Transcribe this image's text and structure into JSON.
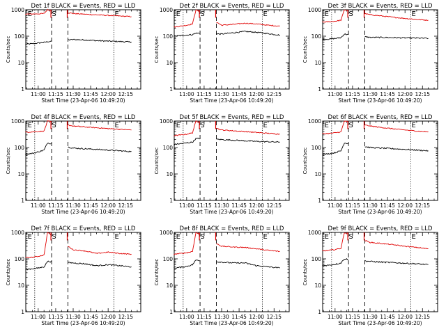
{
  "figure": {
    "ylabel": "Counts/sec",
    "xlabel": "Start Time (23-Apr-06 10:49:20)",
    "colors": {
      "events": "#000000",
      "lld": "#e00000",
      "axes": "#000000",
      "background": "#ffffff"
    }
  },
  "chart_data": [
    {
      "type": "line",
      "title": "Det 1f BLACK = Events, RED = LLD",
      "xlabel": "Start Time (23-Apr-06 10:49:20)",
      "ylabel": "Counts/sec",
      "y_scale": "log",
      "ylim": [
        1,
        1000
      ],
      "y_tick_labels": [
        "1",
        "10",
        "100",
        "1000"
      ],
      "x_tick_labels": [
        "11:00",
        "11:15",
        "11:30",
        "11:45",
        "12:00",
        "12:15"
      ],
      "annotations": [
        "E",
        "S",
        "E"
      ],
      "series": [
        {
          "name": "Events",
          "color": "#000000",
          "x": [
            "10:49",
            "10:55",
            "11:00",
            "11:05",
            "11:08",
            "11:30",
            "11:40",
            "11:50",
            "12:00",
            "12:10",
            "12:20"
          ],
          "values": [
            50,
            52,
            55,
            58,
            62,
            75,
            72,
            68,
            65,
            63,
            60
          ]
        },
        {
          "name": "LLD",
          "color": "#e00000",
          "x": [
            "10:49",
            "10:55",
            "11:00",
            "11:05",
            "11:08",
            "11:30",
            "11:40",
            "11:50",
            "12:00",
            "12:10",
            "12:20"
          ],
          "values": [
            680,
            690,
            700,
            720,
            1000,
            720,
            680,
            640,
            610,
            580,
            550
          ]
        }
      ]
    },
    {
      "type": "line",
      "title": "Det 2f BLACK = Events, RED = LLD",
      "xlabel": "Start Time (23-Apr-06 10:49:20)",
      "ylabel": "Counts/sec",
      "y_scale": "log",
      "ylim": [
        1,
        1000
      ],
      "y_tick_labels": [
        "1",
        "10",
        "100",
        "1000"
      ],
      "x_tick_labels": [
        "11:00",
        "11:15",
        "11:30",
        "11:45",
        "12:00",
        "12:15"
      ],
      "annotations": [
        "E",
        "S",
        "E"
      ],
      "series": [
        {
          "name": "Events",
          "color": "#000000",
          "x": [
            "10:49",
            "10:55",
            "11:00",
            "11:05",
            "11:08",
            "11:30",
            "11:40",
            "11:50",
            "12:00",
            "12:10",
            "12:20"
          ],
          "values": [
            100,
            105,
            110,
            115,
            130,
            120,
            135,
            150,
            140,
            125,
            110
          ]
        },
        {
          "name": "LLD",
          "color": "#e00000",
          "x": [
            "10:49",
            "10:55",
            "11:00",
            "11:05",
            "11:08",
            "11:30",
            "11:40",
            "11:50",
            "12:00",
            "12:10",
            "12:20"
          ],
          "values": [
            220,
            240,
            260,
            290,
            1000,
            260,
            280,
            310,
            290,
            260,
            240
          ]
        }
      ]
    },
    {
      "type": "line",
      "title": "Det 3f BLACK = Events, RED = LLD",
      "xlabel": "Start Time (23-Apr-06 10:49:20)",
      "ylabel": "Counts/sec",
      "y_scale": "log",
      "ylim": [
        1,
        1000
      ],
      "y_tick_labels": [
        "1",
        "10",
        "100",
        "1000"
      ],
      "x_tick_labels": [
        "11:00",
        "11:15",
        "11:30",
        "11:45",
        "12:00",
        "12:15"
      ],
      "annotations": [
        "E",
        "S",
        "E"
      ],
      "series": [
        {
          "name": "Events",
          "color": "#000000",
          "x": [
            "10:49",
            "10:55",
            "11:00",
            "11:05",
            "11:08",
            "11:30",
            "11:40",
            "11:50",
            "12:00",
            "12:10",
            "12:20"
          ],
          "values": [
            75,
            78,
            82,
            88,
            120,
            90,
            90,
            88,
            86,
            85,
            83
          ]
        },
        {
          "name": "LLD",
          "color": "#e00000",
          "x": [
            "10:49",
            "10:55",
            "11:00",
            "11:05",
            "11:08",
            "11:30",
            "11:40",
            "11:50",
            "12:00",
            "12:10",
            "12:20"
          ],
          "values": [
            340,
            350,
            370,
            400,
            1000,
            650,
            580,
            520,
            470,
            430,
            400
          ]
        }
      ]
    },
    {
      "type": "line",
      "title": "Det 4f BLACK = Events, RED = LLD",
      "xlabel": "Start Time (23-Apr-06 10:49:20)",
      "ylabel": "Counts/sec",
      "y_scale": "log",
      "ylim": [
        1,
        1000
      ],
      "y_tick_labels": [
        "1",
        "10",
        "100",
        "1000"
      ],
      "x_tick_labels": [
        "11:00",
        "11:15",
        "11:30",
        "11:45",
        "12:00",
        "12:15"
      ],
      "annotations": [
        "E",
        "S",
        "E"
      ],
      "series": [
        {
          "name": "Events",
          "color": "#000000",
          "x": [
            "10:49",
            "10:55",
            "11:00",
            "11:05",
            "11:08",
            "11:30",
            "11:40",
            "11:50",
            "12:00",
            "12:10",
            "12:20"
          ],
          "values": [
            55,
            60,
            68,
            80,
            150,
            95,
            90,
            85,
            80,
            75,
            70
          ]
        },
        {
          "name": "LLD",
          "color": "#e00000",
          "x": [
            "10:49",
            "10:55",
            "11:00",
            "11:05",
            "11:08",
            "11:30",
            "11:40",
            "11:50",
            "12:00",
            "12:10",
            "12:20"
          ],
          "values": [
            380,
            390,
            400,
            420,
            1000,
            650,
            600,
            560,
            520,
            490,
            460
          ]
        }
      ]
    },
    {
      "type": "line",
      "title": "Det 5f BLACK = Events, RED = LLD",
      "xlabel": "Start Time (23-Apr-06 10:49:20)",
      "ylabel": "Counts/sec",
      "y_scale": "log",
      "ylim": [
        1,
        1000
      ],
      "y_tick_labels": [
        "1",
        "10",
        "100",
        "1000"
      ],
      "x_tick_labels": [
        "11:00",
        "11:15",
        "11:30",
        "11:45",
        "12:00",
        "12:15"
      ],
      "annotations": [
        "E",
        "S",
        "E"
      ],
      "series": [
        {
          "name": "Events",
          "color": "#000000",
          "x": [
            "10:49",
            "10:55",
            "11:00",
            "11:05",
            "11:08",
            "11:30",
            "11:40",
            "11:50",
            "12:00",
            "12:10",
            "12:20"
          ],
          "values": [
            130,
            140,
            150,
            160,
            220,
            200,
            190,
            180,
            170,
            165,
            160
          ]
        },
        {
          "name": "LLD",
          "color": "#e00000",
          "x": [
            "10:49",
            "10:55",
            "11:00",
            "11:05",
            "11:08",
            "11:30",
            "11:40",
            "11:50",
            "12:00",
            "12:10",
            "12:20"
          ],
          "values": [
            280,
            300,
            320,
            360,
            1000,
            460,
            430,
            400,
            370,
            345,
            320
          ]
        }
      ]
    },
    {
      "type": "line",
      "title": "Det 6f BLACK = Events, RED = LLD",
      "xlabel": "Start Time (23-Apr-06 10:49:20)",
      "ylabel": "Counts/sec",
      "y_scale": "log",
      "ylim": [
        1,
        1000
      ],
      "y_tick_labels": [
        "1",
        "10",
        "100",
        "1000"
      ],
      "x_tick_labels": [
        "11:00",
        "11:15",
        "11:30",
        "11:45",
        "12:00",
        "12:15"
      ],
      "annotations": [
        "E",
        "S",
        "E"
      ],
      "series": [
        {
          "name": "Events",
          "color": "#000000",
          "x": [
            "10:49",
            "10:55",
            "11:00",
            "11:05",
            "11:08",
            "11:30",
            "11:40",
            "11:50",
            "12:00",
            "12:10",
            "12:20"
          ],
          "values": [
            55,
            58,
            64,
            75,
            150,
            100,
            95,
            90,
            85,
            80,
            75
          ]
        },
        {
          "name": "LLD",
          "color": "#e00000",
          "x": [
            "10:49",
            "10:55",
            "11:00",
            "11:05",
            "11:08",
            "11:30",
            "11:40",
            "11:50",
            "12:00",
            "12:10",
            "12:20"
          ],
          "values": [
            330,
            340,
            360,
            390,
            1000,
            650,
            570,
            510,
            460,
            420,
            390
          ]
        }
      ]
    },
    {
      "type": "line",
      "title": "Det 7f BLACK = Events, RED = LLD",
      "xlabel": "Start Time (23-Apr-06 10:49:20)",
      "ylabel": "Counts/sec",
      "y_scale": "log",
      "ylim": [
        1,
        1000
      ],
      "y_tick_labels": [
        "1",
        "10",
        "100",
        "1000"
      ],
      "x_tick_labels": [
        "11:00",
        "11:15",
        "11:30",
        "11:45",
        "12:00",
        "12:15"
      ],
      "annotations": [
        "E",
        "S",
        "E"
      ],
      "series": [
        {
          "name": "Events",
          "color": "#000000",
          "x": [
            "10:49",
            "10:55",
            "11:00",
            "11:05",
            "11:08",
            "11:30",
            "11:40",
            "11:50",
            "12:00",
            "12:10",
            "12:20"
          ],
          "values": [
            40,
            42,
            45,
            50,
            80,
            70,
            65,
            55,
            60,
            55,
            50
          ]
        },
        {
          "name": "LLD",
          "color": "#e00000",
          "x": [
            "10:49",
            "10:55",
            "11:00",
            "11:05",
            "11:08",
            "11:30",
            "11:40",
            "11:50",
            "12:00",
            "12:10",
            "12:20"
          ],
          "values": [
            110,
            115,
            125,
            140,
            1000,
            220,
            200,
            160,
            180,
            160,
            150
          ]
        }
      ]
    },
    {
      "type": "line",
      "title": "Det 8f BLACK = Events, RED = LLD",
      "xlabel": "Start Time (23-Apr-06 10:49:20)",
      "ylabel": "Counts/sec",
      "y_scale": "log",
      "ylim": [
        1,
        1000
      ],
      "y_tick_labels": [
        "1",
        "10",
        "100",
        "1000"
      ],
      "x_tick_labels": [
        "11:00",
        "11:15",
        "11:30",
        "11:45",
        "12:00",
        "12:15"
      ],
      "annotations": [
        "E",
        "S",
        "E"
      ],
      "series": [
        {
          "name": "Events",
          "color": "#000000",
          "x": [
            "10:49",
            "10:55",
            "11:00",
            "11:05",
            "11:08",
            "11:30",
            "11:40",
            "11:50",
            "12:00",
            "12:10",
            "12:20"
          ],
          "values": [
            45,
            48,
            52,
            60,
            90,
            75,
            70,
            70,
            55,
            50,
            45
          ]
        },
        {
          "name": "LLD",
          "color": "#e00000",
          "x": [
            "10:49",
            "10:55",
            "11:00",
            "11:05",
            "11:08",
            "11:30",
            "11:40",
            "11:50",
            "12:00",
            "12:10",
            "12:20"
          ],
          "values": [
            150,
            160,
            170,
            190,
            1000,
            300,
            280,
            270,
            240,
            210,
            190
          ]
        }
      ]
    },
    {
      "type": "line",
      "title": "Det 9f BLACK = Events, RED = LLD",
      "xlabel": "Start Time (23-Apr-06 10:49:20)",
      "ylabel": "Counts/sec",
      "y_scale": "log",
      "ylim": [
        1,
        1000
      ],
      "y_tick_labels": [
        "1",
        "10",
        "100",
        "1000"
      ],
      "x_tick_labels": [
        "11:00",
        "11:15",
        "11:30",
        "11:45",
        "12:00",
        "12:15"
      ],
      "annotations": [
        "E",
        "S",
        "E"
      ],
      "series": [
        {
          "name": "Events",
          "color": "#000000",
          "x": [
            "10:49",
            "10:55",
            "11:00",
            "11:05",
            "11:08",
            "11:30",
            "11:40",
            "11:50",
            "12:00",
            "12:10",
            "12:20"
          ],
          "values": [
            55,
            58,
            62,
            70,
            100,
            80,
            75,
            72,
            68,
            65,
            60
          ]
        },
        {
          "name": "LLD",
          "color": "#e00000",
          "x": [
            "10:49",
            "10:55",
            "11:00",
            "11:05",
            "11:08",
            "11:30",
            "11:40",
            "11:50",
            "12:00",
            "12:10",
            "12:20"
          ],
          "values": [
            200,
            210,
            225,
            250,
            1000,
            420,
            380,
            340,
            300,
            270,
            240
          ]
        }
      ]
    }
  ]
}
